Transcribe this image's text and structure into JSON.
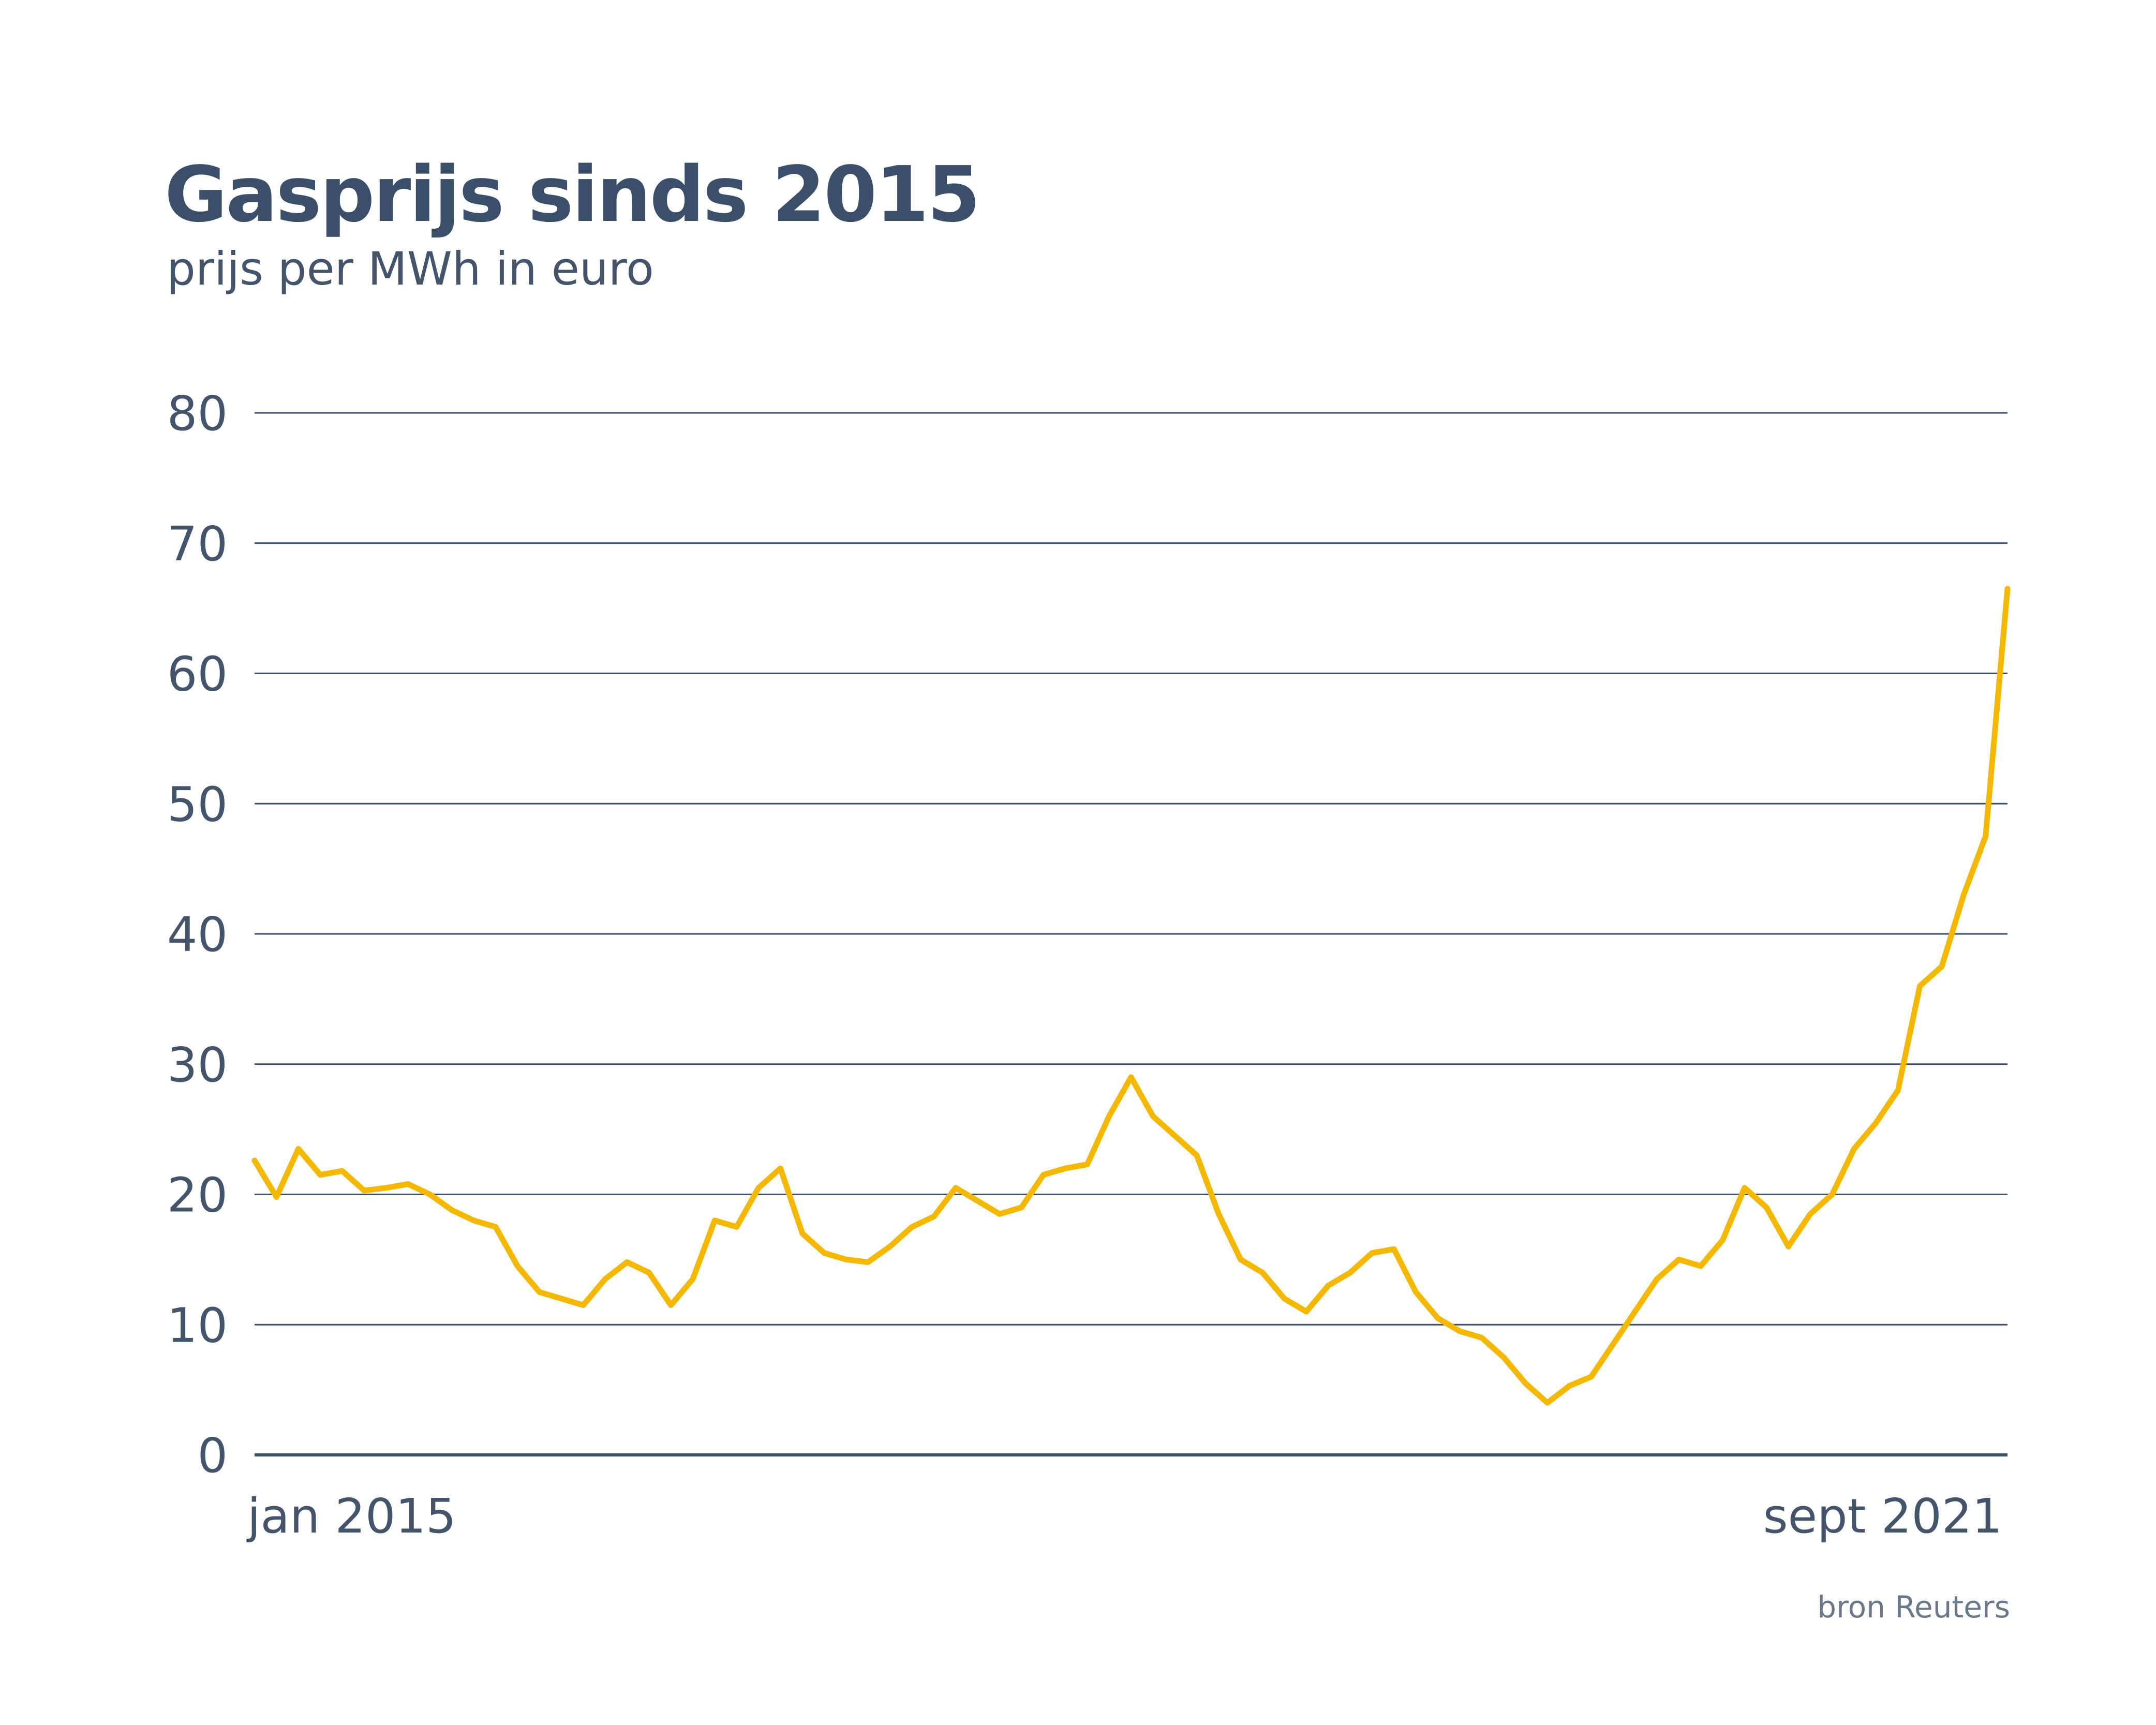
{
  "header": {
    "title": "Gasprijs sinds 2015",
    "subtitle": "prijs per MWh in euro"
  },
  "footer": {
    "source": "bron Reuters"
  },
  "colors": {
    "line": "#f5b800",
    "text": "#3b4f6b",
    "grid": "#3b4f6b"
  },
  "chart_data": {
    "type": "line",
    "title": "Gasprijs sinds 2015",
    "subtitle": "prijs per MWh in euro",
    "xlabel": "",
    "ylabel": "",
    "ylim": [
      0,
      80
    ],
    "yticks": [
      0,
      10,
      20,
      30,
      40,
      50,
      60,
      70,
      80
    ],
    "xlim": [
      "2015-01",
      "2021-09"
    ],
    "xtick_labels": [
      "jan 2015",
      "sept 2021"
    ],
    "grid": true,
    "legend": "none",
    "series": [
      {
        "x": [
          "2015-01",
          "2015-02",
          "2015-03",
          "2015-04",
          "2015-05",
          "2015-06",
          "2015-07",
          "2015-08",
          "2015-09",
          "2015-10",
          "2015-11",
          "2015-12",
          "2016-01",
          "2016-02",
          "2016-03",
          "2016-04",
          "2016-05",
          "2016-06",
          "2016-07",
          "2016-08",
          "2016-09",
          "2016-10",
          "2016-11",
          "2016-12",
          "2017-01",
          "2017-02",
          "2017-03",
          "2017-04",
          "2017-05",
          "2017-06",
          "2017-07",
          "2017-08",
          "2017-09",
          "2017-10",
          "2017-11",
          "2017-12",
          "2018-01",
          "2018-02",
          "2018-03",
          "2018-04",
          "2018-05",
          "2018-06",
          "2018-07",
          "2018-08",
          "2018-09",
          "2018-10",
          "2018-11",
          "2018-12",
          "2019-01",
          "2019-02",
          "2019-03",
          "2019-04",
          "2019-05",
          "2019-06",
          "2019-07",
          "2019-08",
          "2019-09",
          "2019-10",
          "2019-11",
          "2019-12",
          "2020-01",
          "2020-02",
          "2020-03",
          "2020-04",
          "2020-05",
          "2020-06",
          "2020-07",
          "2020-08",
          "2020-09",
          "2020-10",
          "2020-11",
          "2020-12",
          "2021-01",
          "2021-02",
          "2021-03",
          "2021-04",
          "2021-05",
          "2021-06",
          "2021-07",
          "2021-08",
          "2021-09"
        ],
        "values": [
          22.6,
          19.8,
          23.5,
          21.5,
          21.8,
          20.3,
          20.5,
          20.8,
          20.0,
          18.8,
          18.0,
          17.5,
          14.5,
          12.5,
          12.0,
          11.5,
          13.5,
          14.8,
          14.0,
          11.5,
          13.5,
          18.0,
          17.5,
          20.5,
          22.0,
          17.0,
          15.5,
          15.0,
          14.8,
          16.0,
          17.5,
          18.3,
          20.5,
          19.5,
          18.5,
          19.0,
          21.5,
          22.0,
          22.3,
          26.0,
          29.0,
          26.0,
          24.5,
          23.0,
          18.5,
          15.0,
          14.0,
          12.0,
          11.0,
          13.0,
          14.0,
          15.5,
          15.8,
          12.5,
          10.5,
          9.5,
          9.0,
          7.5,
          5.5,
          4.0,
          5.3,
          6.0,
          8.5,
          11.0,
          13.5,
          15.0,
          14.5,
          16.5,
          20.5,
          19.0,
          16.0,
          18.5,
          20.0,
          23.5,
          25.5,
          28.0,
          36.0,
          37.5,
          43.0,
          47.5,
          66.5
        ]
      }
    ]
  }
}
